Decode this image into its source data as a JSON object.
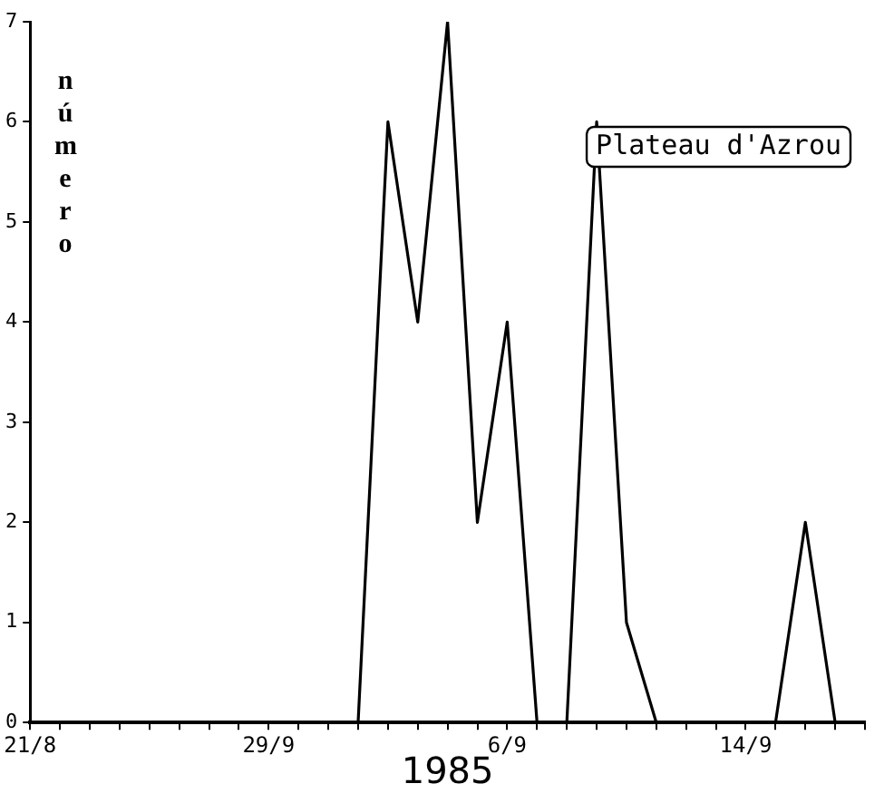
{
  "chart_data": {
    "type": "line",
    "xlabel": "1985",
    "ylabel": "número",
    "annotations": [
      "Plateau d'Azrou"
    ],
    "categories": [
      "21/8",
      null,
      null,
      null,
      null,
      null,
      null,
      null,
      "29/9",
      null,
      null,
      null,
      null,
      null,
      null,
      null,
      "6/9",
      null,
      null,
      null,
      null,
      null,
      null,
      null,
      "14/9",
      null,
      null,
      null,
      null
    ],
    "series": [
      {
        "color": "#000000",
        "values": [
          0,
          0,
          0,
          0,
          0,
          0,
          0,
          0,
          0,
          0,
          0,
          0,
          6,
          4,
          7,
          2,
          4,
          0,
          0,
          6,
          1,
          0,
          0,
          0,
          0,
          0,
          2,
          0,
          0
        ]
      }
    ],
    "ylim": [
      0,
      7
    ],
    "yticks": [
      0,
      1,
      2,
      3,
      4,
      5,
      6,
      7
    ],
    "grid": false,
    "legend": false,
    "marker": "none",
    "line_style": "solid"
  }
}
